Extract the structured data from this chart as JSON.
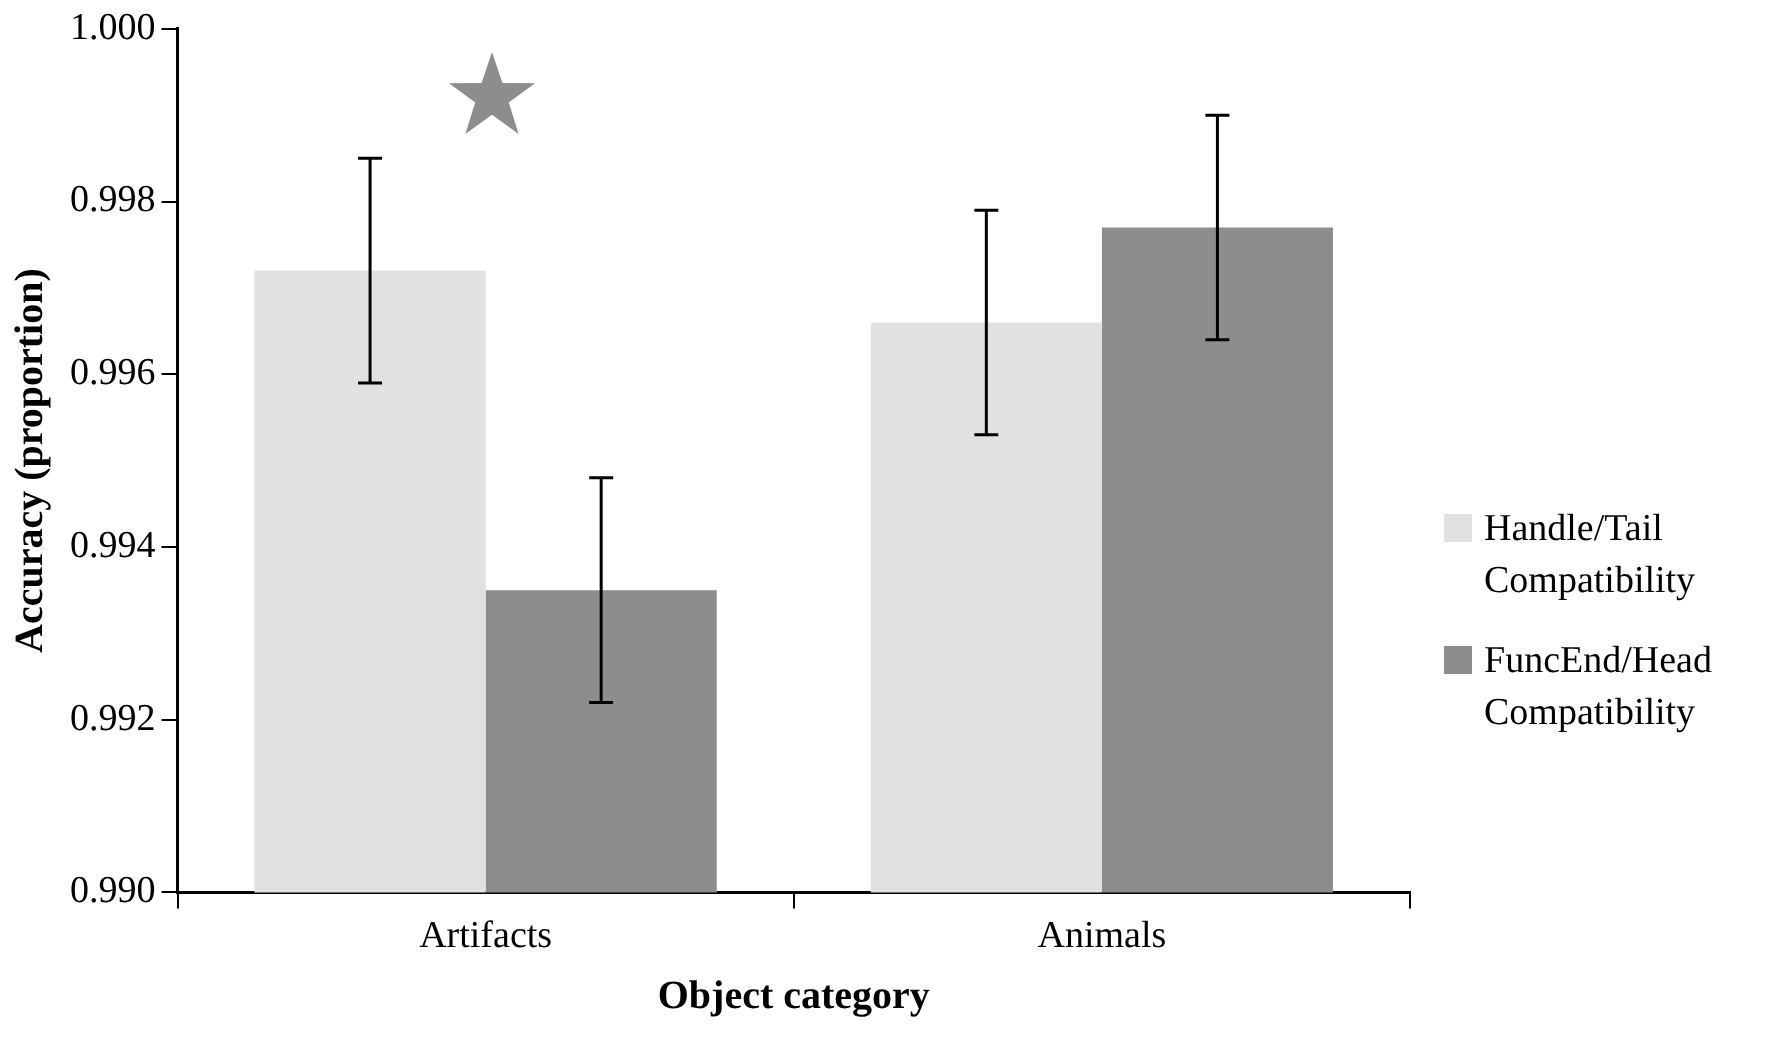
{
  "chart_data": {
    "type": "bar",
    "xlabel": "Object category",
    "ylabel": "Accuracy (proportion)",
    "categories": [
      "Artifacts",
      "Animals"
    ],
    "series": [
      {
        "name": "Handle/Tail Compatibility",
        "color": "#e0e1e2",
        "values": [
          0.9972,
          0.9966
        ],
        "errors": [
          0.0013,
          0.0013
        ]
      },
      {
        "name": "FuncEnd/Head Compatibility",
        "color": "#8c8d8f",
        "values": [
          0.9935,
          0.9977
        ],
        "errors": [
          0.0013,
          0.0013
        ]
      }
    ],
    "ylim": [
      0.99,
      1.0
    ],
    "yticks": [
      {
        "value": 0.99,
        "label": "0.990"
      },
      {
        "value": 0.992,
        "label": "0.992"
      },
      {
        "value": 0.994,
        "label": "0.994"
      },
      {
        "value": 0.996,
        "label": "0.996"
      },
      {
        "value": 0.998,
        "label": "0.998"
      },
      {
        "value": 1.0,
        "label": "1.000"
      }
    ],
    "legend": "right"
  }
}
